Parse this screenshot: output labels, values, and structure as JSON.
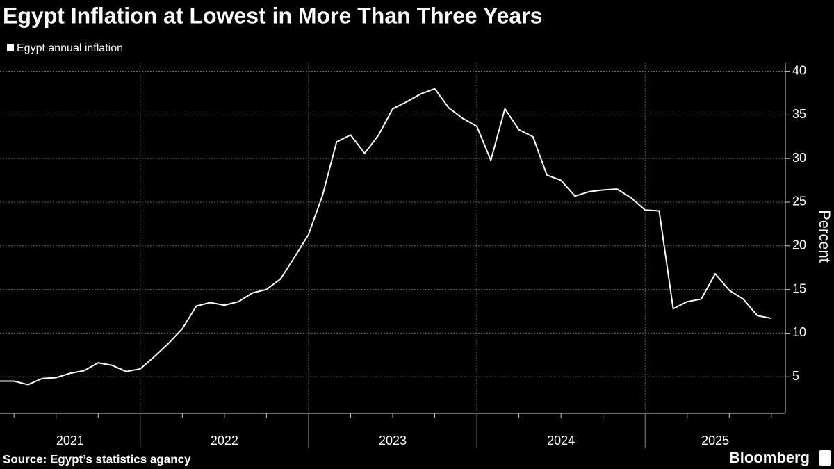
{
  "chart_data": {
    "type": "line",
    "title": "Egypt Inflation at Lowest in More Than Three Years",
    "source": "Source: Egypt’s statistics agancy",
    "brand": "Bloomberg",
    "ylabel": "Percent",
    "x": [
      "2021-02",
      "2021-03",
      "2021-04",
      "2021-05",
      "2021-06",
      "2021-07",
      "2021-08",
      "2021-09",
      "2021-10",
      "2021-11",
      "2021-12",
      "2022-01",
      "2022-02",
      "2022-03",
      "2022-04",
      "2022-05",
      "2022-06",
      "2022-07",
      "2022-08",
      "2022-09",
      "2022-10",
      "2022-11",
      "2022-12",
      "2023-01",
      "2023-02",
      "2023-03",
      "2023-04",
      "2023-05",
      "2023-06",
      "2023-07",
      "2023-08",
      "2023-09",
      "2023-10",
      "2023-11",
      "2023-12",
      "2024-01",
      "2024-02",
      "2024-03",
      "2024-04",
      "2024-05",
      "2024-06",
      "2024-07",
      "2024-08",
      "2024-09",
      "2024-10",
      "2024-11",
      "2024-12",
      "2025-01",
      "2025-02",
      "2025-03",
      "2025-04",
      "2025-05",
      "2025-06",
      "2025-07",
      "2025-08",
      "2025-09"
    ],
    "series": [
      {
        "name": "Egypt annual inflation",
        "color": "#ffffff",
        "values": [
          4.5,
          4.5,
          4.1,
          4.8,
          4.9,
          5.4,
          5.7,
          6.6,
          6.3,
          5.6,
          5.9,
          7.3,
          8.8,
          10.5,
          13.1,
          13.5,
          13.2,
          13.6,
          14.6,
          15.0,
          16.2,
          18.7,
          21.3,
          25.8,
          31.9,
          32.7,
          30.6,
          32.7,
          35.7,
          36.5,
          37.4,
          38.0,
          35.8,
          34.6,
          33.7,
          29.8,
          35.7,
          33.3,
          32.5,
          28.1,
          27.5,
          25.7,
          26.2,
          26.4,
          26.5,
          25.5,
          24.1,
          24.0,
          12.8,
          13.6,
          13.9,
          16.8,
          14.9,
          13.9,
          12.0,
          11.7
        ]
      }
    ],
    "xlim": [
      "2021-02",
      "2025-10"
    ],
    "xticks": [
      2021,
      2022,
      2023,
      2024,
      2025
    ],
    "ylim": [
      0.8,
      41
    ],
    "yticks": [
      5,
      10,
      15,
      20,
      25,
      30,
      35,
      40
    ],
    "grid": true
  }
}
